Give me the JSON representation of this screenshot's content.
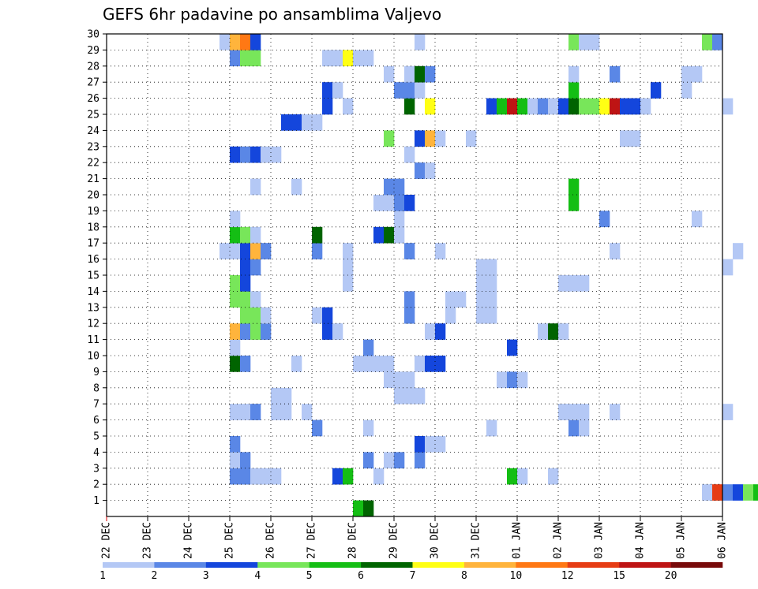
{
  "chart_data": {
    "type": "heatmap",
    "title": "GEFS 6hr padavine po ansamblima Valjevo",
    "x_tick_labels": [
      "22 DEC",
      "23 DEC",
      "24 DEC",
      "25 DEC",
      "26 DEC",
      "27 DEC",
      "28 DEC",
      "29 DEC",
      "30 DEC",
      "31 DEC",
      "01 JAN",
      "02 JAN",
      "03 JAN",
      "04 JAN",
      "05 JAN",
      "06 JAN"
    ],
    "y_tick_labels": [
      "1",
      "2",
      "3",
      "4",
      "5",
      "6",
      "7",
      "8",
      "9",
      "10",
      "11",
      "12",
      "13",
      "14",
      "15",
      "16",
      "17",
      "18",
      "19",
      "20",
      "21",
      "22",
      "23",
      "24",
      "25",
      "26",
      "27",
      "28",
      "29",
      "30"
    ],
    "x_range_days": [
      0,
      15
    ],
    "steps_per_day": 4,
    "y_range": [
      0,
      30
    ],
    "grid": true,
    "legend_placement": "bottom",
    "legend": {
      "labels": [
        "1",
        "2",
        "3",
        "4",
        "5",
        "6",
        "7",
        "8",
        "10",
        "12",
        "15",
        "20"
      ],
      "colors": [
        "#b4c8f5",
        "#5a87e6",
        "#1446dc",
        "#78e65a",
        "#14be14",
        "#006400",
        "#ffff14",
        "#ffb43c",
        "#ff7814",
        "#e63c14",
        "#be1414",
        "#780a0a"
      ]
    },
    "series": [
      {
        "member": 1,
        "cells": [
          [
            24,
            4
          ],
          [
            25,
            5
          ],
          [
            94,
            3
          ],
          [
            95,
            3
          ]
        ]
      },
      {
        "member": 2,
        "cells": [
          [
            58,
            0
          ],
          [
            59,
            9
          ],
          [
            60,
            1
          ],
          [
            61,
            2
          ],
          [
            62,
            3
          ],
          [
            63,
            4
          ],
          [
            64,
            5
          ],
          [
            65,
            2
          ],
          [
            119,
            0
          ]
        ]
      },
      {
        "member": 3,
        "cells": [
          [
            12,
            1
          ],
          [
            13,
            1
          ],
          [
            14,
            0
          ],
          [
            15,
            0
          ],
          [
            16,
            0
          ],
          [
            22,
            2
          ],
          [
            23,
            4
          ],
          [
            26,
            0
          ],
          [
            39,
            4
          ],
          [
            40,
            0
          ],
          [
            43,
            0
          ],
          [
            119,
            0
          ],
          [
            120,
            0
          ]
        ]
      },
      {
        "member": 4,
        "cells": [
          [
            12,
            0
          ],
          [
            13,
            1
          ],
          [
            25,
            1
          ],
          [
            27,
            0
          ],
          [
            28,
            1
          ],
          [
            30,
            1
          ],
          [
            110,
            10
          ],
          [
            111,
            0
          ]
        ]
      },
      {
        "member": 5,
        "cells": [
          [
            12,
            1
          ],
          [
            30,
            2
          ],
          [
            31,
            0
          ],
          [
            32,
            0
          ],
          [
            109,
            11
          ],
          [
            110,
            7
          ]
        ]
      },
      {
        "member": 6,
        "cells": [
          [
            20,
            1
          ],
          [
            25,
            0
          ],
          [
            37,
            0
          ],
          [
            45,
            1
          ],
          [
            46,
            0
          ],
          [
            116,
            1
          ],
          [
            117,
            1
          ]
        ]
      },
      {
        "member": 7,
        "cells": [
          [
            12,
            0
          ],
          [
            13,
            0
          ],
          [
            14,
            1
          ],
          [
            16,
            0
          ],
          [
            17,
            0
          ],
          [
            19,
            0
          ],
          [
            44,
            0
          ],
          [
            45,
            0
          ],
          [
            46,
            0
          ],
          [
            49,
            0
          ],
          [
            60,
            0
          ],
          [
            74,
            0
          ],
          [
            75,
            1
          ],
          [
            86,
            2
          ],
          [
            91,
            0
          ],
          [
            97,
            4
          ],
          [
            98,
            1
          ],
          [
            99,
            1
          ],
          [
            100,
            1
          ]
        ]
      },
      {
        "member": 8,
        "cells": [
          [
            16,
            0
          ],
          [
            17,
            0
          ],
          [
            28,
            0
          ],
          [
            29,
            0
          ],
          [
            30,
            0
          ]
        ]
      },
      {
        "member": 9,
        "cells": [
          [
            27,
            0
          ],
          [
            28,
            0
          ],
          [
            29,
            0
          ],
          [
            38,
            0
          ],
          [
            39,
            1
          ],
          [
            40,
            0
          ]
        ]
      },
      {
        "member": 10,
        "cells": [
          [
            12,
            5
          ],
          [
            13,
            1
          ],
          [
            18,
            0
          ],
          [
            24,
            0
          ],
          [
            25,
            0
          ],
          [
            26,
            0
          ],
          [
            27,
            0
          ],
          [
            30,
            0
          ],
          [
            31,
            2
          ],
          [
            32,
            2
          ],
          [
            102,
            8
          ],
          [
            103,
            2
          ],
          [
            104,
            0
          ]
        ]
      },
      {
        "member": 11,
        "cells": [
          [
            12,
            0
          ],
          [
            25,
            1
          ],
          [
            39,
            2
          ]
        ]
      },
      {
        "member": 12,
        "cells": [
          [
            12,
            7
          ],
          [
            13,
            1
          ],
          [
            14,
            3
          ],
          [
            15,
            1
          ],
          [
            21,
            2
          ],
          [
            22,
            0
          ],
          [
            31,
            0
          ],
          [
            32,
            2
          ],
          [
            42,
            0
          ],
          [
            43,
            5
          ],
          [
            44,
            0
          ]
        ]
      },
      {
        "member": 13,
        "cells": [
          [
            13,
            3
          ],
          [
            14,
            3
          ],
          [
            15,
            0
          ],
          [
            20,
            0
          ],
          [
            21,
            2
          ],
          [
            29,
            1
          ],
          [
            33,
            0
          ],
          [
            36,
            0
          ],
          [
            37,
            0
          ],
          [
            72,
            1
          ]
        ]
      },
      {
        "member": 14,
        "cells": [
          [
            12,
            3
          ],
          [
            13,
            3
          ],
          [
            14,
            0
          ],
          [
            29,
            1
          ],
          [
            33,
            0
          ],
          [
            34,
            0
          ],
          [
            36,
            0
          ],
          [
            37,
            0
          ],
          [
            72,
            1
          ]
        ]
      },
      {
        "member": 15,
        "cells": [
          [
            12,
            3
          ],
          [
            13,
            2
          ],
          [
            23,
            0
          ],
          [
            36,
            0
          ],
          [
            37,
            0
          ],
          [
            44,
            0
          ],
          [
            45,
            0
          ],
          [
            46,
            0
          ],
          [
            69,
            0
          ],
          [
            122,
            1
          ]
        ]
      },
      {
        "member": 16,
        "cells": [
          [
            13,
            2
          ],
          [
            14,
            1
          ],
          [
            23,
            0
          ],
          [
            36,
            0
          ],
          [
            37,
            0
          ],
          [
            60,
            0
          ],
          [
            64,
            0
          ],
          [
            65,
            0
          ],
          [
            86,
            0
          ],
          [
            123,
            3
          ]
        ]
      },
      {
        "member": 17,
        "cells": [
          [
            11,
            0
          ],
          [
            12,
            0
          ],
          [
            13,
            2
          ],
          [
            14,
            7
          ],
          [
            15,
            1
          ],
          [
            20,
            1
          ],
          [
            23,
            0
          ],
          [
            29,
            1
          ],
          [
            32,
            0
          ],
          [
            49,
            0
          ],
          [
            61,
            0
          ],
          [
            76,
            1
          ]
        ]
      },
      {
        "member": 18,
        "cells": [
          [
            12,
            4
          ],
          [
            13,
            3
          ],
          [
            14,
            0
          ],
          [
            20,
            5
          ],
          [
            26,
            2
          ],
          [
            27,
            5
          ],
          [
            28,
            0
          ]
        ]
      },
      {
        "member": 19,
        "cells": [
          [
            12,
            0
          ],
          [
            28,
            0
          ],
          [
            48,
            1
          ],
          [
            57,
            0
          ],
          [
            77,
            8
          ],
          [
            78,
            4
          ]
        ]
      },
      {
        "member": 20,
        "cells": [
          [
            26,
            0
          ],
          [
            27,
            0
          ],
          [
            28,
            1
          ],
          [
            29,
            2
          ],
          [
            45,
            4
          ],
          [
            72,
            0
          ],
          [
            76,
            2
          ]
        ]
      },
      {
        "member": 21,
        "cells": [
          [
            14,
            0
          ],
          [
            18,
            0
          ],
          [
            27,
            1
          ],
          [
            28,
            1
          ],
          [
            45,
            4
          ]
        ]
      },
      {
        "member": 22,
        "cells": [
          [
            30,
            1
          ],
          [
            31,
            0
          ]
        ]
      },
      {
        "member": 23,
        "cells": [
          [
            12,
            2
          ],
          [
            13,
            1
          ],
          [
            14,
            2
          ],
          [
            15,
            0
          ],
          [
            16,
            0
          ],
          [
            29,
            0
          ]
        ]
      },
      {
        "member": 24,
        "cells": [
          [
            27,
            3
          ],
          [
            30,
            2
          ],
          [
            31,
            7
          ],
          [
            32,
            0
          ],
          [
            35,
            0
          ],
          [
            50,
            0
          ],
          [
            51,
            0
          ],
          [
            76,
            0
          ],
          [
            87,
            0
          ]
        ]
      },
      {
        "member": 25,
        "cells": [
          [
            17,
            2
          ],
          [
            18,
            2
          ],
          [
            19,
            0
          ],
          [
            20,
            0
          ]
        ]
      },
      {
        "member": 26,
        "cells": [
          [
            21,
            2
          ],
          [
            23,
            0
          ],
          [
            29,
            5
          ],
          [
            31,
            6
          ],
          [
            37,
            2
          ],
          [
            38,
            4
          ],
          [
            39,
            10
          ],
          [
            40,
            4
          ],
          [
            41,
            0
          ],
          [
            42,
            1
          ],
          [
            43,
            0
          ],
          [
            44,
            2
          ],
          [
            45,
            5
          ],
          [
            46,
            3
          ],
          [
            47,
            3
          ],
          [
            48,
            6
          ],
          [
            49,
            10
          ],
          [
            50,
            2
          ],
          [
            51,
            2
          ],
          [
            52,
            0
          ],
          [
            60,
            0
          ],
          [
            67,
            0
          ],
          [
            68,
            0
          ]
        ]
      },
      {
        "member": 27,
        "cells": [
          [
            21,
            2
          ],
          [
            22,
            0
          ],
          [
            28,
            1
          ],
          [
            29,
            1
          ],
          [
            30,
            0
          ],
          [
            45,
            4
          ],
          [
            53,
            2
          ],
          [
            56,
            0
          ]
        ]
      },
      {
        "member": 28,
        "cells": [
          [
            27,
            0
          ],
          [
            29,
            0
          ],
          [
            30,
            5
          ],
          [
            31,
            1
          ],
          [
            45,
            0
          ],
          [
            49,
            1
          ],
          [
            56,
            0
          ],
          [
            57,
            0
          ]
        ]
      },
      {
        "member": 29,
        "cells": [
          [
            12,
            1
          ],
          [
            13,
            3
          ],
          [
            14,
            3
          ],
          [
            21,
            0
          ],
          [
            22,
            0
          ],
          [
            23,
            6
          ],
          [
            24,
            0
          ],
          [
            25,
            0
          ]
        ]
      },
      {
        "member": 30,
        "cells": [
          [
            11,
            0
          ],
          [
            12,
            7
          ],
          [
            13,
            8
          ],
          [
            14,
            2
          ],
          [
            30,
            0
          ],
          [
            45,
            3
          ],
          [
            46,
            0
          ],
          [
            47,
            0
          ],
          [
            58,
            3
          ],
          [
            59,
            1
          ]
        ]
      }
    ]
  }
}
